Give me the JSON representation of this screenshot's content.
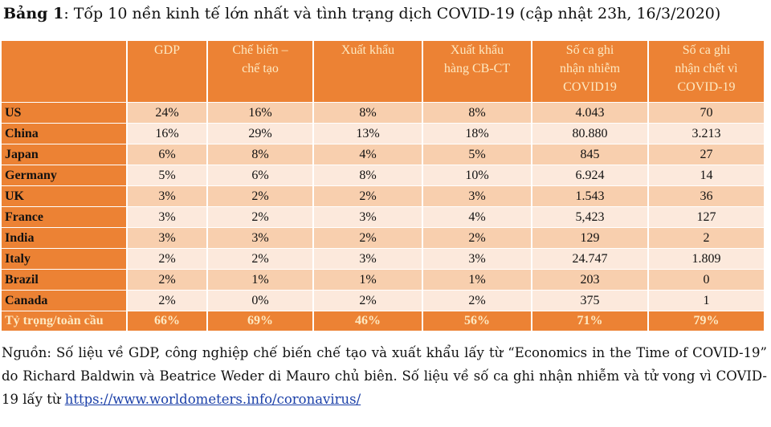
{
  "caption": {
    "label": "Bảng 1",
    "text": ": Tốp 10 nền kinh tế lớn nhất và tình trạng dịch COVID-19 (cập nhật 23h, 16/3/2020)"
  },
  "table": {
    "headers": [
      [
        "GDP"
      ],
      [
        "Chế biến –",
        "chế tạo"
      ],
      [
        "Xuất khẩu"
      ],
      [
        "Xuất khẩu",
        "hàng CB-CT"
      ],
      [
        "Số ca ghi",
        "nhận nhiễm",
        "COVID19"
      ],
      [
        "Số ca ghi",
        "nhận chết vì",
        "COVID-19"
      ]
    ],
    "rows": [
      [
        "US",
        "24%",
        "16%",
        "8%",
        "8%",
        "4.043",
        "70"
      ],
      [
        "China",
        "16%",
        "29%",
        "13%",
        "18%",
        "80.880",
        "3.213"
      ],
      [
        "Japan",
        "6%",
        "8%",
        "4%",
        "5%",
        "845",
        "27"
      ],
      [
        "Germany",
        "5%",
        "6%",
        "8%",
        "10%",
        "6.924",
        "14"
      ],
      [
        "UK",
        "3%",
        "2%",
        "2%",
        "3%",
        "1.543",
        "36"
      ],
      [
        "France",
        "3%",
        "2%",
        "3%",
        "4%",
        "5,423",
        "127"
      ],
      [
        "India",
        "3%",
        "3%",
        "2%",
        "2%",
        "129",
        "2"
      ],
      [
        "Italy",
        "2%",
        "2%",
        "3%",
        "3%",
        "24.747",
        "1.809"
      ],
      [
        "Brazil",
        "2%",
        "1%",
        "1%",
        "1%",
        "203",
        "0"
      ],
      [
        "Canada",
        "2%",
        "0%",
        "2%",
        "2%",
        "375",
        "1"
      ]
    ],
    "total": [
      "Tỷ trọng/toàn cầu",
      "66%",
      "69%",
      "46%",
      "56%",
      "71%",
      "79%"
    ]
  },
  "source": {
    "text": "Nguồn: Số liệu về GDP, công nghiệp chế biến chế tạo và xuất khẩu lấy từ “Economics in the Time of COVID-19” do Richard Baldwin và Beatrice Weder di Mauro chủ biên. Số liệu về số ca ghi nhận nhiễm và tử vong vì COVID-19 lấy từ ",
    "link": "https://www.worldometers.info/coronavirus/"
  },
  "colors": {
    "header_orange": "#ec8234",
    "header_text": "#fde9c2",
    "row_dark": "#f8cfae",
    "row_light": "#fce9dc"
  }
}
